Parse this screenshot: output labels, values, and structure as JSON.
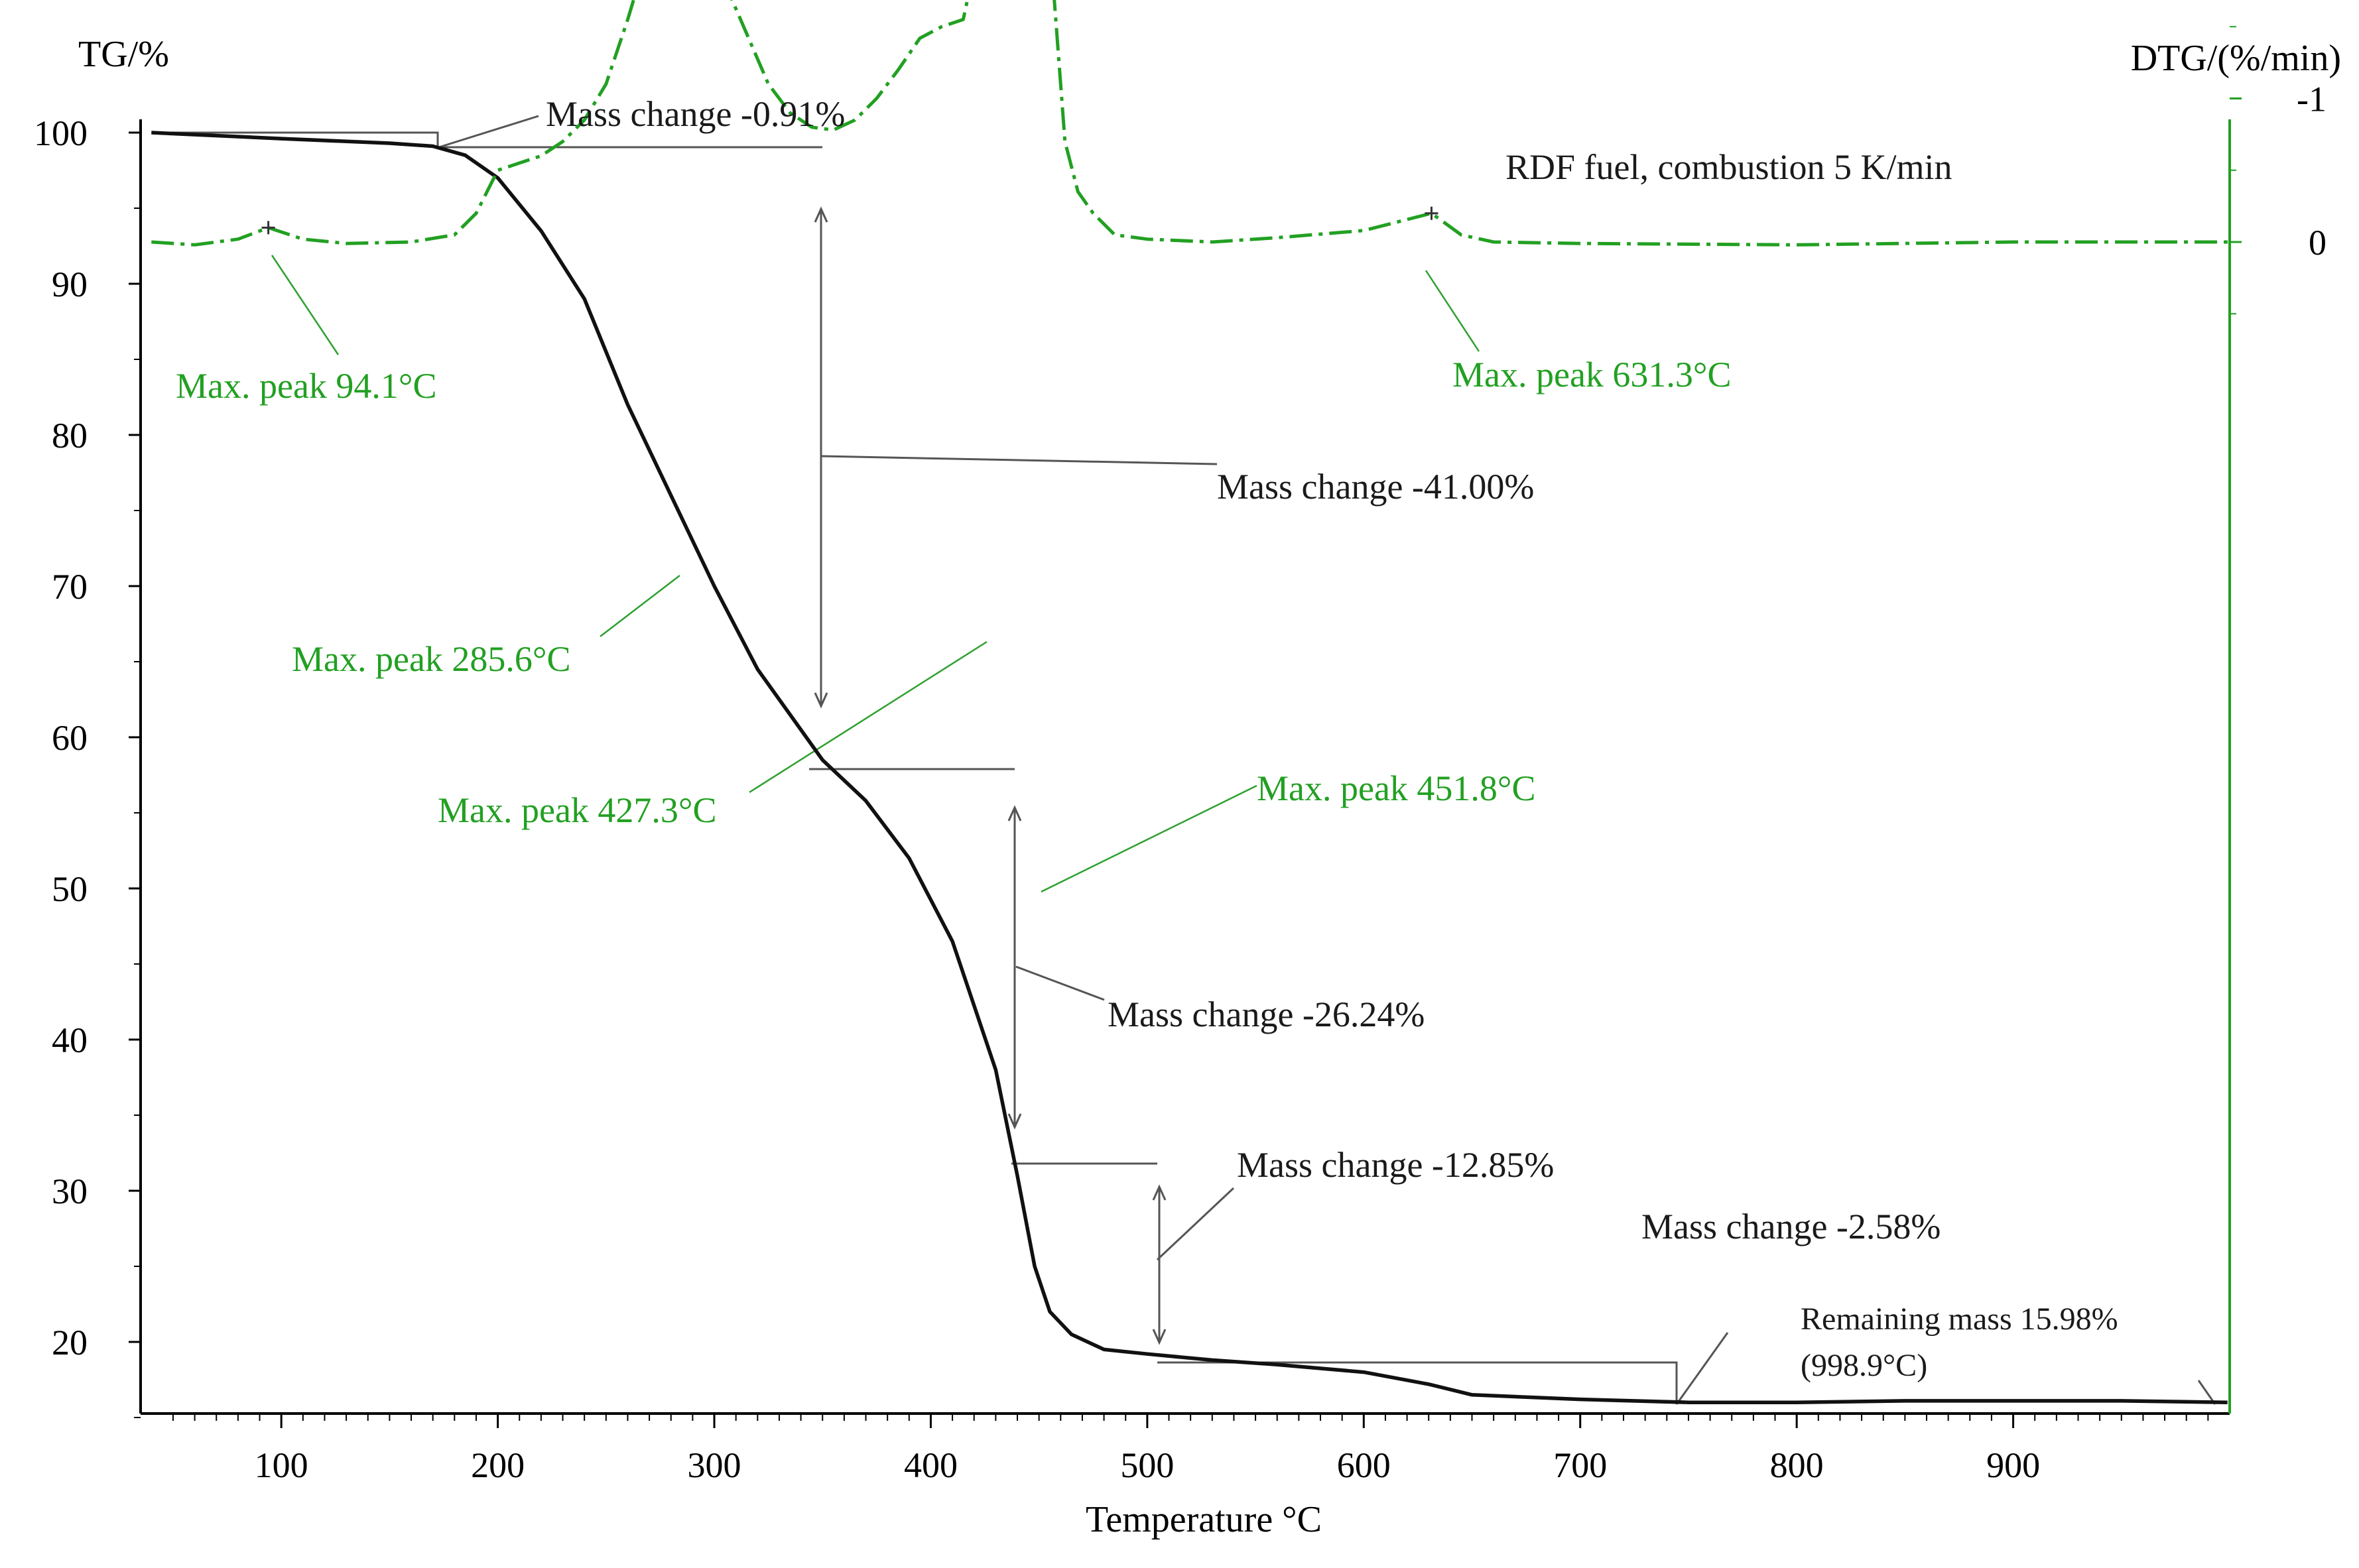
{
  "chart_data": {
    "type": "line",
    "title": "",
    "subtitle": "RDF fuel, combustion 5 K/min",
    "xlabel": "Temperature °C",
    "ylabel_left": "TG/%",
    "ylabel_right": "DTG/(%/min)",
    "xlim": [
      35,
      1000
    ],
    "ylim_left": [
      15,
      101
    ],
    "ylim_right": [
      -8.3,
      1.1
    ],
    "xticks": [
      "100",
      "200",
      "300",
      "400",
      "500",
      "600",
      "700",
      "800",
      "900"
    ],
    "yticks_left": [
      "20",
      "30",
      "40",
      "50",
      "60",
      "70",
      "80",
      "90",
      "100"
    ],
    "yticks_right": [
      "0",
      "-1",
      "-2",
      "-3",
      "-4",
      "-5",
      "-6",
      "-7",
      "-8"
    ],
    "grid": false,
    "colors": {
      "tg": "#111111",
      "dtg": "#22a022",
      "right_axis": "#22a022",
      "annotation": "#555555"
    },
    "series": [
      {
        "name": "TG",
        "axis": "left",
        "x": [
          40,
          100,
          150,
          170,
          185,
          200,
          220,
          240,
          260,
          280,
          300,
          320,
          340,
          350,
          370,
          390,
          410,
          430,
          440,
          448,
          455,
          465,
          480,
          500,
          530,
          560,
          600,
          630,
          650,
          700,
          750,
          800,
          850,
          900,
          950,
          999
        ],
        "y": [
          100,
          99.6,
          99.3,
          99.1,
          98.5,
          97.0,
          93.5,
          89.0,
          82.0,
          76.0,
          70.0,
          64.5,
          60.5,
          58.5,
          55.8,
          52.0,
          46.5,
          38.0,
          31.0,
          25.0,
          22.0,
          20.5,
          19.5,
          19.2,
          18.8,
          18.5,
          18.0,
          17.2,
          16.5,
          16.2,
          16.0,
          16.0,
          16.1,
          16.1,
          16.1,
          16.0
        ]
      },
      {
        "name": "DTG",
        "axis": "right",
        "x": [
          40,
          60,
          80,
          94,
          110,
          130,
          160,
          180,
          190,
          200,
          210,
          220,
          230,
          240,
          250,
          260,
          270,
          280,
          285.6,
          295,
          305,
          315,
          325,
          335,
          345,
          355,
          365,
          375,
          385,
          395,
          405,
          415,
          420,
          425,
          427.3,
          432,
          437,
          442,
          446,
          449,
          451.8,
          454,
          457,
          462,
          468,
          475,
          485,
          500,
          530,
          560,
          600,
          631.3,
          645,
          660,
          700,
          800,
          900,
          1000
        ],
        "y": [
          0.0,
          0.02,
          -0.02,
          -0.1,
          -0.02,
          0.01,
          0.0,
          -0.05,
          -0.2,
          -0.5,
          -0.55,
          -0.6,
          -0.7,
          -0.85,
          -1.1,
          -1.55,
          -2.05,
          -2.25,
          -2.25,
          -2.1,
          -1.8,
          -1.45,
          -1.1,
          -0.9,
          -0.8,
          -0.78,
          -0.85,
          -1.0,
          -1.2,
          -1.42,
          -1.5,
          -1.55,
          -1.9,
          -2.5,
          -2.7,
          -2.55,
          -2.45,
          -2.6,
          -3.0,
          -3.9,
          -4.5,
          -3.8,
          -1.7,
          -0.7,
          -0.35,
          -0.2,
          -0.05,
          -0.02,
          0.0,
          -0.03,
          -0.08,
          -0.2,
          -0.05,
          0.0,
          0.01,
          0.02,
          0.0,
          0.0
        ]
      }
    ],
    "annotations": {
      "subtitle": "RDF fuel, combustion 5 K/min",
      "mass_change_1": "Mass change -0.91%",
      "mass_change_2": "Mass change -41.00%",
      "mass_change_3": "Mass change -26.24%",
      "mass_change_4": "Mass change -12.85%",
      "mass_change_5": "Mass change -2.58%",
      "remaining_mass_line1": "Remaining mass 15.98%",
      "remaining_mass_line2": "(998.9°C)",
      "peak_94": "Max. peak 94.1°C",
      "peak_285": "Max. peak 285.6°C",
      "peak_427": "Max. peak 427.3°C",
      "peak_451": "Max. peak 451.8°C",
      "peak_631": "Max. peak 631.3°C"
    }
  }
}
